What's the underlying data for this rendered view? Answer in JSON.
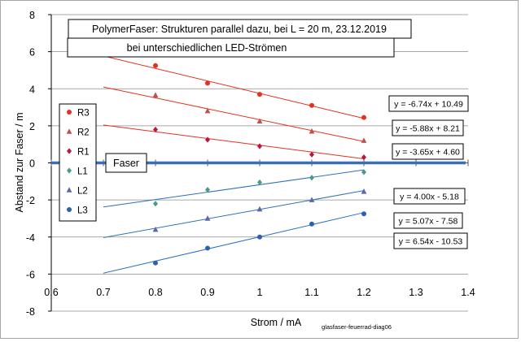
{
  "chart_data": {
    "type": "scatter",
    "title": "PolymerFaser:  Strukturen parallel dazu, bei L = 20 m,  23.12.2019",
    "subtitle": "bei unterschiedlichen LED-Strömen",
    "xlabel": "Strom / mA",
    "ylabel": "Abstand zur Faser / m",
    "xlim": [
      0.6,
      1.4
    ],
    "ylim": [
      -8,
      8
    ],
    "x_ticks": [
      "0.6",
      "0.7",
      "0.8",
      "0.9",
      "1",
      "1.1",
      "1.2",
      "1.3",
      "1.4"
    ],
    "y_ticks": [
      "-8",
      "-6",
      "-4",
      "-2",
      "0",
      "2",
      "4",
      "6",
      "8"
    ],
    "grid": "horizontal",
    "legend_position": "left",
    "fiber_label": "Faser",
    "fiber_value": 0,
    "footer": "glasfaser-feuerrad-diag06",
    "series": [
      {
        "name": "R3",
        "marker": "circle",
        "color": "#e8301c",
        "line_color": "#e8301c",
        "x": [
          0.8,
          0.9,
          1.0,
          1.1,
          1.2
        ],
        "y": [
          5.25,
          4.3,
          3.7,
          3.1,
          2.45
        ],
        "fit": {
          "label": "y = -6.74x + 10.49",
          "slope": -6.74,
          "intercept": 10.49,
          "x_range": [
            0.7,
            1.2
          ]
        }
      },
      {
        "name": "R2",
        "marker": "triangle",
        "color": "#c0504d",
        "line_color": "#e8301c",
        "x": [
          0.8,
          0.9,
          1.0,
          1.1,
          1.2
        ],
        "y": [
          3.65,
          2.8,
          2.25,
          1.7,
          1.2
        ],
        "fit": {
          "label": "y = -5.88x + 8.21",
          "slope": -5.88,
          "intercept": 8.21,
          "x_range": [
            0.7,
            1.2
          ]
        }
      },
      {
        "name": "R1",
        "marker": "diamond",
        "color": "#c0143c",
        "line_color": "#e8301c",
        "x": [
          0.8,
          0.9,
          1.0,
          1.1,
          1.2
        ],
        "y": [
          1.8,
          1.25,
          0.9,
          0.45,
          0.3
        ],
        "fit": {
          "label": "y = -3.65x + 4.60",
          "slope": -3.65,
          "intercept": 4.6,
          "x_range": [
            0.7,
            1.2
          ]
        }
      },
      {
        "name": "L1",
        "marker": "diamond",
        "color": "#4a9a8c",
        "line_color": "#2a72c0",
        "x": [
          0.8,
          0.9,
          1.0,
          1.1,
          1.2
        ],
        "y": [
          -2.2,
          -1.45,
          -1.05,
          -0.8,
          -0.5
        ],
        "fit": {
          "label": "y = 4.00x - 5.18",
          "slope": 4.0,
          "intercept": -5.18,
          "x_range": [
            0.7,
            1.2
          ]
        }
      },
      {
        "name": "L2",
        "marker": "triangle",
        "color": "#5a6aa0",
        "line_color": "#2a72c0",
        "x": [
          0.8,
          0.9,
          1.0,
          1.1,
          1.2
        ],
        "y": [
          -3.6,
          -3.0,
          -2.5,
          -2.0,
          -1.55
        ],
        "fit": {
          "label": "y = 5.07x - 7.58",
          "slope": 5.07,
          "intercept": -7.58,
          "x_range": [
            0.7,
            1.2
          ]
        }
      },
      {
        "name": "L3",
        "marker": "circle",
        "color": "#2a62b0",
        "line_color": "#2a72c0",
        "x": [
          0.8,
          0.9,
          1.0,
          1.1,
          1.2
        ],
        "y": [
          -5.4,
          -4.6,
          -4.0,
          -3.3,
          -2.75
        ],
        "fit": {
          "label": "y = 6.54x - 10.53",
          "slope": 6.54,
          "intercept": -10.53,
          "x_range": [
            0.7,
            1.2
          ]
        }
      }
    ]
  }
}
